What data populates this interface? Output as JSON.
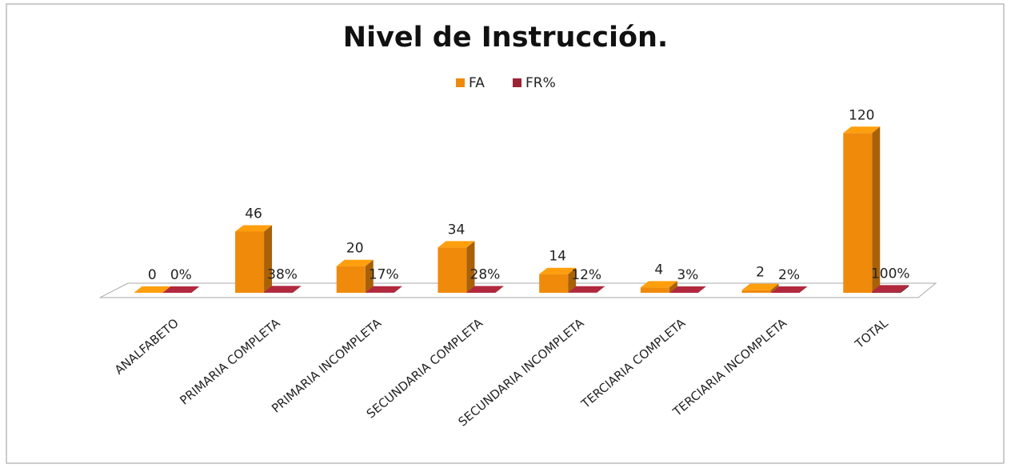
{
  "chart_data": {
    "type": "bar3d",
    "title": "Nivel de Instrucción.",
    "categories": [
      "ANALFABETO",
      "PRIMARIA COMPLETA",
      "PRIMARIA INCOMPLETA",
      "SECUNDARIA COMPLETA",
      "SECUNDARIA INCOMPLETA",
      "TERCIARIA COMPLETA",
      "TERCIARIA INCOMPLETA",
      "TOTAL"
    ],
    "series": [
      {
        "name": "FA",
        "color": "#f08a0b",
        "values": [
          0,
          46,
          20,
          34,
          14,
          4,
          2,
          120
        ]
      },
      {
        "name": "FR%",
        "color": "#9b2335",
        "values": [
          0,
          0.38,
          0.17,
          0.28,
          0.12,
          0.03,
          0.02,
          1
        ],
        "value_labels": [
          "0%",
          "38%",
          "17%",
          "28%",
          "12%",
          "3%",
          "2%",
          "100%"
        ]
      }
    ],
    "ylim": [
      0,
      140
    ],
    "legend": "top"
  }
}
